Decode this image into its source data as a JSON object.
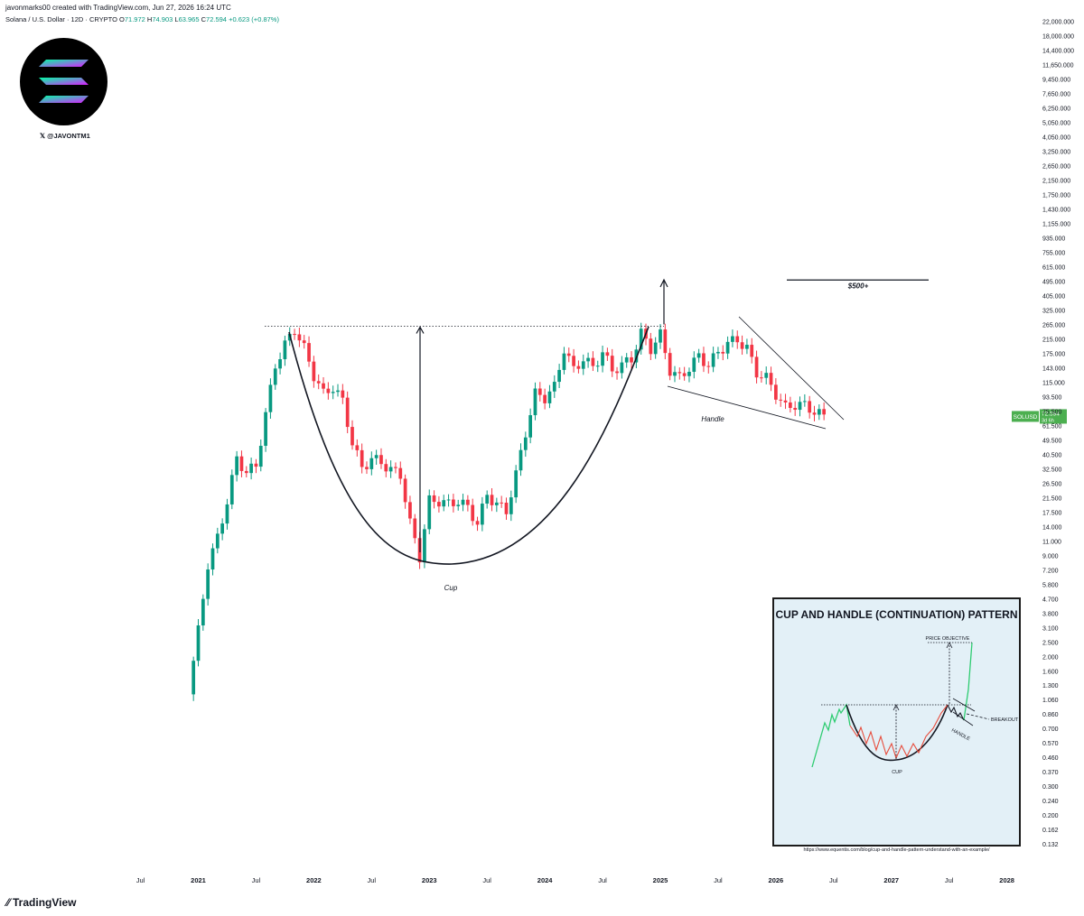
{
  "header": {
    "created_by": "javonmarks00 created with TradingView.com, Jun 27, 2026 16:24 UTC",
    "symbol": "Solana / U.S. Dollar · 12D · CRYPTO",
    "ohlc": {
      "o_label": "O",
      "o": "71.972",
      "h_label": "H",
      "h": "74.903",
      "l_label": "L",
      "l": "63.965",
      "c_label": "C",
      "c": "72.594",
      "change": "+0.623 (+0.87%)"
    }
  },
  "logo": {
    "handle": "@JAVONTM1",
    "icon": "solana-logo-icon",
    "x_icon": "x-twitter-icon"
  },
  "brand": {
    "name": "TradingView",
    "icon": "tradingview-logo-icon"
  },
  "colors": {
    "up": "#089981",
    "down": "#f23645",
    "logo_bg": "#000000",
    "inset_bg": "#e3f0f7",
    "price_tag": "#4caf50"
  },
  "chart_data": {
    "type": "candlestick",
    "y_scale": "log",
    "price_axis_ticks": [
      "22,000.000",
      "18,000.000",
      "14,400.000",
      "11,650.000",
      "9,450.000",
      "7,650.000",
      "6,250.000",
      "5,050.000",
      "4,050.000",
      "3,250.000",
      "2,650.000",
      "2,150.000",
      "1,750.000",
      "1,430.000",
      "1,155.000",
      "935.000",
      "755.000",
      "615.000",
      "495.000",
      "405.000",
      "325.000",
      "265.000",
      "215.000",
      "175.000",
      "143.000",
      "115.000",
      "93.500",
      "75.500",
      "61.500",
      "49.500",
      "40.500",
      "32.500",
      "26.500",
      "21.500",
      "17.500",
      "14.000",
      "11.000",
      "9.000",
      "7.200",
      "5.800",
      "4.700",
      "3.800",
      "3.100",
      "2.500",
      "2.000",
      "1.600",
      "1.300",
      "1.060",
      "0.860",
      "0.700",
      "0.570",
      "0.460",
      "0.370",
      "0.300",
      "0.240",
      "0.200",
      "0.162",
      "0.132"
    ],
    "time_axis_ticks": [
      "Jul",
      "2021",
      "Jul",
      "2022",
      "Jul",
      "2023",
      "Jul",
      "2024",
      "Jul",
      "2025",
      "Jul",
      "2026",
      "Jul",
      "2027",
      "Jul",
      "2028"
    ],
    "last_price": {
      "symbol": "SOLUSD",
      "price": "72.594",
      "countdown": "3d 6h"
    },
    "anchors": [
      {
        "date": "2020-12",
        "price": 1.5
      },
      {
        "date": "2021-01",
        "price": 3.5
      },
      {
        "date": "2021-02",
        "price": 9
      },
      {
        "date": "2021-03",
        "price": 13
      },
      {
        "date": "2021-04",
        "price": 22
      },
      {
        "date": "2021-05",
        "price": 40
      },
      {
        "date": "2021-06",
        "price": 33
      },
      {
        "date": "2021-07",
        "price": 36
      },
      {
        "date": "2021-08",
        "price": 75
      },
      {
        "date": "2021-09",
        "price": 150
      },
      {
        "date": "2021-10",
        "price": 200
      },
      {
        "date": "2021-11",
        "price": 250
      },
      {
        "date": "2021-12",
        "price": 190
      },
      {
        "date": "2022-01",
        "price": 130
      },
      {
        "date": "2022-02",
        "price": 100
      },
      {
        "date": "2022-03",
        "price": 110
      },
      {
        "date": "2022-04",
        "price": 90
      },
      {
        "date": "2022-05",
        "price": 50
      },
      {
        "date": "2022-06",
        "price": 35
      },
      {
        "date": "2022-07",
        "price": 40
      },
      {
        "date": "2022-08",
        "price": 38
      },
      {
        "date": "2022-09",
        "price": 34
      },
      {
        "date": "2022-10",
        "price": 32
      },
      {
        "date": "2022-11",
        "price": 16
      },
      {
        "date": "2022-12",
        "price": 10
      },
      {
        "date": "2023-01",
        "price": 22
      },
      {
        "date": "2023-02",
        "price": 22
      },
      {
        "date": "2023-03",
        "price": 21
      },
      {
        "date": "2023-04",
        "price": 22
      },
      {
        "date": "2023-05",
        "price": 20
      },
      {
        "date": "2023-06",
        "price": 16
      },
      {
        "date": "2023-07",
        "price": 24
      },
      {
        "date": "2023-08",
        "price": 21
      },
      {
        "date": "2023-09",
        "price": 19
      },
      {
        "date": "2023-10",
        "price": 32
      },
      {
        "date": "2023-11",
        "price": 58
      },
      {
        "date": "2023-12",
        "price": 100
      },
      {
        "date": "2024-01",
        "price": 95
      },
      {
        "date": "2024-02",
        "price": 110
      },
      {
        "date": "2024-03",
        "price": 190
      },
      {
        "date": "2024-04",
        "price": 140
      },
      {
        "date": "2024-05",
        "price": 165
      },
      {
        "date": "2024-06",
        "price": 145
      },
      {
        "date": "2024-07",
        "price": 180
      },
      {
        "date": "2024-08",
        "price": 140
      },
      {
        "date": "2024-09",
        "price": 150
      },
      {
        "date": "2024-10",
        "price": 165
      },
      {
        "date": "2024-11",
        "price": 235
      },
      {
        "date": "2024-12",
        "price": 190
      },
      {
        "date": "2025-01",
        "price": 230
      },
      {
        "date": "2025-02",
        "price": 140
      },
      {
        "date": "2025-03",
        "price": 125
      },
      {
        "date": "2025-04",
        "price": 145
      },
      {
        "date": "2025-05",
        "price": 170
      },
      {
        "date": "2025-06",
        "price": 150
      },
      {
        "date": "2025-07",
        "price": 180
      },
      {
        "date": "2025-08",
        "price": 205
      },
      {
        "date": "2025-09",
        "price": 215
      },
      {
        "date": "2025-10",
        "price": 190
      },
      {
        "date": "2025-11",
        "price": 135
      },
      {
        "date": "2025-12",
        "price": 125
      },
      {
        "date": "2026-01",
        "price": 100
      },
      {
        "date": "2026-02",
        "price": 82
      },
      {
        "date": "2026-03",
        "price": 86
      },
      {
        "date": "2026-04",
        "price": 85
      },
      {
        "date": "2026-05",
        "price": 78
      },
      {
        "date": "2026-06",
        "price": 72.594
      }
    ],
    "annotations": {
      "cup": "Cup",
      "handle": "Handle",
      "target": "$500+",
      "target_price": 500,
      "neckline_price": 260
    },
    "inset": {
      "title": "CUP AND HANDLE (CONTINUATION) PATTERN",
      "labels": {
        "price_objective": "PRICE OBJECTIVE",
        "breakout": "BREAKOUT",
        "handle": "HANDLE",
        "cup": "CUP"
      },
      "url": "https://www.equentis.com/blog/cup-and-handle-pattern-understand-with-an-example/"
    }
  }
}
